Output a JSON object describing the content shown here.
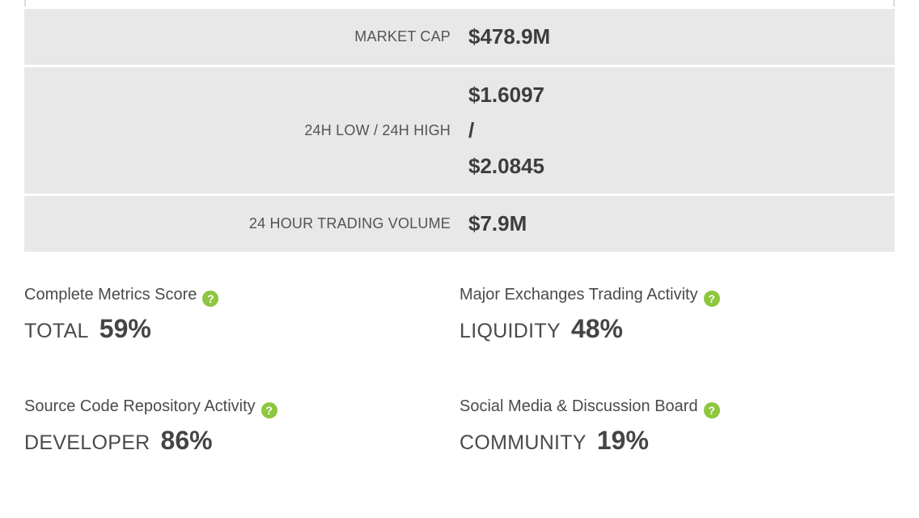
{
  "stats_table": {
    "rows": [
      {
        "label": "MARKET CAP",
        "value": "$478.9M"
      },
      {
        "label": "24H LOW / 24H HIGH",
        "low": "$1.6097",
        "separator": "/",
        "high": "$2.0845"
      },
      {
        "label": "24 HOUR TRADING VOLUME",
        "value": "$7.9M"
      }
    ]
  },
  "metrics": [
    {
      "title": "Complete Metrics Score",
      "label": "TOTAL",
      "value": "59%"
    },
    {
      "title": "Major Exchanges Trading Activity",
      "label": "LIQUIDITY",
      "value": "48%"
    },
    {
      "title": "Source Code Repository Activity",
      "label": "DEVELOPER",
      "value": "86%"
    },
    {
      "title": "Social Media & Discussion Board",
      "label": "COMMUNITY",
      "value": "19%"
    }
  ],
  "icons": {
    "help": "?"
  },
  "colors": {
    "accent_green": "#8dc63f",
    "row_bg": "#e8e8e8",
    "edge_border": "#dcdcdc",
    "label_gray": "#545454",
    "value_dark": "#3d3d3d",
    "metric_gray": "#4a4a4a"
  }
}
